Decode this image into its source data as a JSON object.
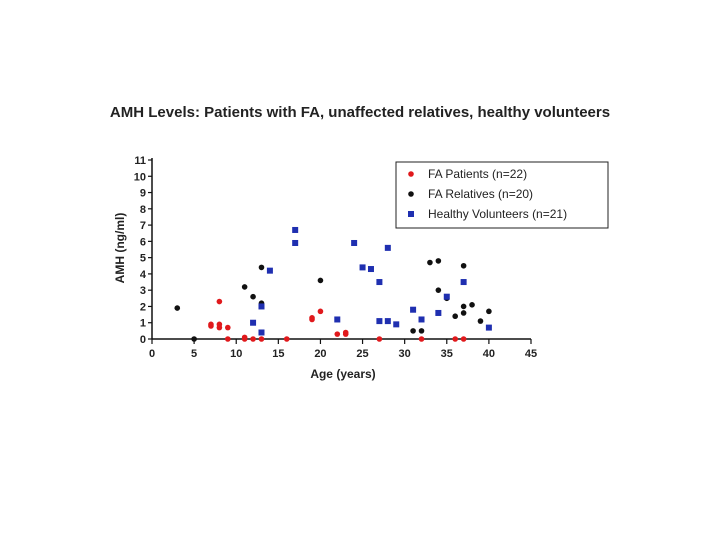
{
  "chart_data": {
    "type": "scatter",
    "title": "AMH Levels:  Patients with  FA, unaffected relatives, healthy volunteers",
    "xlabel": "Age (years)",
    "ylabel": "AMH (ng/ml)",
    "xlim": [
      0,
      45
    ],
    "ylim": [
      0,
      11
    ],
    "xticks": [
      0,
      5,
      10,
      15,
      20,
      25,
      30,
      35,
      40,
      45
    ],
    "yticks": [
      0,
      1,
      2,
      3,
      4,
      5,
      6,
      7,
      8,
      9,
      10,
      11
    ],
    "grid": false,
    "legend_position": "top-right",
    "series": [
      {
        "name": "FA Patients (n=22)",
        "color": "#e0191c",
        "marker": "circle",
        "points": [
          [
            7,
            0.8
          ],
          [
            7,
            0.9
          ],
          [
            8,
            2.3
          ],
          [
            8,
            0.7
          ],
          [
            8,
            0.9
          ],
          [
            9,
            0.7
          ],
          [
            9,
            0.0
          ],
          [
            11,
            0.1
          ],
          [
            11,
            0.0
          ],
          [
            12,
            0.0
          ],
          [
            13,
            0.0
          ],
          [
            16,
            0.0
          ],
          [
            19,
            1.2
          ],
          [
            19,
            1.3
          ],
          [
            20,
            1.7
          ],
          [
            22,
            0.3
          ],
          [
            23,
            0.3
          ],
          [
            23,
            0.4
          ],
          [
            27,
            0.0
          ],
          [
            32,
            0.0
          ],
          [
            36,
            0.0
          ],
          [
            37,
            0.0
          ]
        ]
      },
      {
        "name": "FA Relatives (n=20)",
        "color": "#111111",
        "marker": "circle",
        "points": [
          [
            3,
            1.9
          ],
          [
            5,
            0.0
          ],
          [
            11,
            3.2
          ],
          [
            12,
            2.6
          ],
          [
            13,
            2.2
          ],
          [
            13,
            4.4
          ],
          [
            20,
            3.6
          ],
          [
            31,
            0.5
          ],
          [
            32,
            0.5
          ],
          [
            33,
            4.7
          ],
          [
            34,
            4.8
          ],
          [
            34,
            3.0
          ],
          [
            35,
            2.5
          ],
          [
            36,
            1.4
          ],
          [
            37,
            4.5
          ],
          [
            37,
            2.0
          ],
          [
            37,
            1.6
          ],
          [
            38,
            2.1
          ],
          [
            39,
            1.1
          ],
          [
            40,
            1.7
          ]
        ]
      },
      {
        "name": "Healthy Volunteers (n=21)",
        "color": "#1f2fb0",
        "marker": "square",
        "points": [
          [
            12,
            1.0
          ],
          [
            13,
            2.0
          ],
          [
            13,
            0.4
          ],
          [
            14,
            4.2
          ],
          [
            17,
            6.7
          ],
          [
            17,
            5.9
          ],
          [
            22,
            1.2
          ],
          [
            24,
            5.9
          ],
          [
            25,
            4.4
          ],
          [
            26,
            4.3
          ],
          [
            27,
            3.5
          ],
          [
            27,
            1.1
          ],
          [
            28,
            5.6
          ],
          [
            28,
            1.1
          ],
          [
            29,
            0.9
          ],
          [
            31,
            1.8
          ],
          [
            32,
            1.2
          ],
          [
            34,
            1.6
          ],
          [
            35,
            2.6
          ],
          [
            37,
            3.5
          ],
          [
            40,
            0.7
          ]
        ]
      }
    ]
  }
}
